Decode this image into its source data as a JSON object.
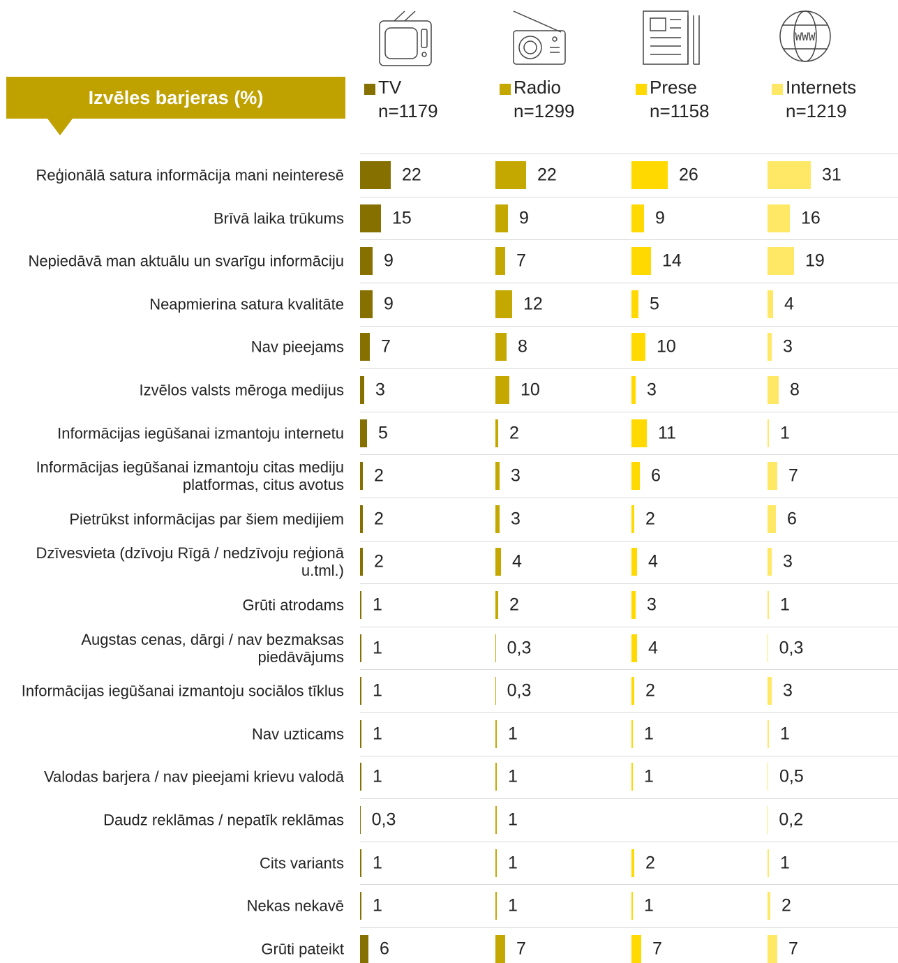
{
  "chart_data": {
    "type": "bar",
    "title": "Izvēles barjeras (%)",
    "categories": [
      "Reģionālā satura informācija mani neinteresē",
      "Brīvā laika trūkums",
      "Nepiedāvā man aktuālu un svarīgu informāciju",
      "Neapmierina satura kvalitāte",
      "Nav pieejams",
      "Izvēlos valsts mēroga medijus",
      "Informācijas iegūšanai izmantoju internetu",
      "Informācijas iegūšanai izmantoju citas mediju platformas, citus avotus",
      "Pietrūkst informācijas par šiem medijiem",
      "Dzīvesvieta (dzīvoju Rīgā / nedzīvoju reģionā u.tml.)",
      "Grūti atrodams",
      "Augstas cenas, dārgi / nav bezmaksas piedāvājums",
      "Informācijas iegūšanai izmantoju sociālos tīklus",
      "Nav uzticams",
      "Valodas barjera / nav pieejami krievu valodā",
      "Daudz reklāmas / nepatīk reklāmas",
      "Cits variants",
      "Nekas nekavē",
      "Grūti pateikt"
    ],
    "series": [
      {
        "name": "TV",
        "n": "n=1179",
        "color": "#857000",
        "values": [
          22,
          15,
          9,
          9,
          7,
          3,
          5,
          2,
          2,
          2,
          1,
          1,
          1,
          1,
          1,
          0.3,
          1,
          1,
          6
        ],
        "value_labels": [
          "22",
          "15",
          "9",
          "9",
          "7",
          "3",
          "5",
          "2",
          "2",
          "2",
          "1",
          "1",
          "1",
          "1",
          "1",
          "0,3",
          "1",
          "1",
          "6"
        ]
      },
      {
        "name": "Radio",
        "n": "n=1299",
        "color": "#c4a800",
        "values": [
          22,
          9,
          7,
          12,
          8,
          10,
          2,
          3,
          3,
          4,
          2,
          0.3,
          0.3,
          1,
          1,
          1,
          1,
          1,
          7
        ],
        "value_labels": [
          "22",
          "9",
          "7",
          "12",
          "8",
          "10",
          "2",
          "3",
          "3",
          "4",
          "2",
          "0,3",
          "0,3",
          "1",
          "1",
          "1",
          "1",
          "1",
          "7"
        ]
      },
      {
        "name": "Prese",
        "n": "n=1158",
        "color": "#ffd900",
        "values": [
          26,
          9,
          14,
          5,
          10,
          3,
          11,
          6,
          2,
          4,
          3,
          4,
          2,
          1,
          1,
          null,
          2,
          1,
          7
        ],
        "value_labels": [
          "26",
          "9",
          "14",
          "5",
          "10",
          "3",
          "11",
          "6",
          "2",
          "4",
          "3",
          "4",
          "2",
          "1",
          "1",
          null,
          "2",
          "1",
          "7"
        ]
      },
      {
        "name": "Internets",
        "n": "n=1219",
        "color": "#ffe866",
        "values": [
          31,
          16,
          19,
          4,
          3,
          8,
          1,
          7,
          6,
          3,
          1,
          0.3,
          3,
          1,
          0.5,
          0.2,
          1,
          2,
          7
        ],
        "value_labels": [
          "31",
          "16",
          "19",
          "4",
          "3",
          "8",
          "1",
          "7",
          "6",
          "3",
          "1",
          "0,3",
          "3",
          "1",
          "0,5",
          "0,2",
          "1",
          "2",
          "7"
        ]
      }
    ]
  }
}
